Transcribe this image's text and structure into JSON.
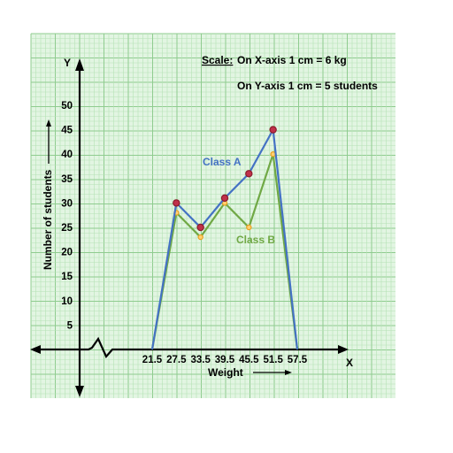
{
  "colors": {
    "paper": "#e2f5e2",
    "grid_minor": "#b6e2b6",
    "grid_major": "#8fcc8f",
    "class_a_line": "#4472c4",
    "class_a_marker": "#c0304a",
    "class_b_line": "#70a845",
    "class_b_marker": "#e8a020",
    "axis": "#000000"
  },
  "scale_note": {
    "title": "Scale:",
    "x_text": "On X-axis 1 cm = 6 kg",
    "y_text": "On Y-axis 1 cm = 5 students"
  },
  "chart_data": {
    "type": "line",
    "xlabel": "Weight",
    "ylabel": "Number of students",
    "x_axis_letter": "X",
    "y_axis_letter": "Y",
    "x_ticks": [
      "21.5",
      "27.5",
      "33.5",
      "39.5",
      "45.5",
      "51.5",
      "57.5"
    ],
    "y_ticks": [
      "5",
      "10",
      "15",
      "20",
      "25",
      "30",
      "35",
      "40",
      "45",
      "50"
    ],
    "ylim": [
      0,
      50
    ],
    "grid": true,
    "series": [
      {
        "name": "Class A",
        "x": [
          21.5,
          27.5,
          33.5,
          39.5,
          45.5,
          51.5,
          57.5
        ],
        "y": [
          0,
          30,
          25,
          31,
          36,
          45,
          0
        ]
      },
      {
        "name": "Class B",
        "x": [
          21.5,
          27.5,
          33.5,
          39.5,
          45.5,
          51.5,
          57.5
        ],
        "y": [
          0,
          28,
          23,
          30,
          25,
          40,
          0
        ]
      }
    ]
  }
}
